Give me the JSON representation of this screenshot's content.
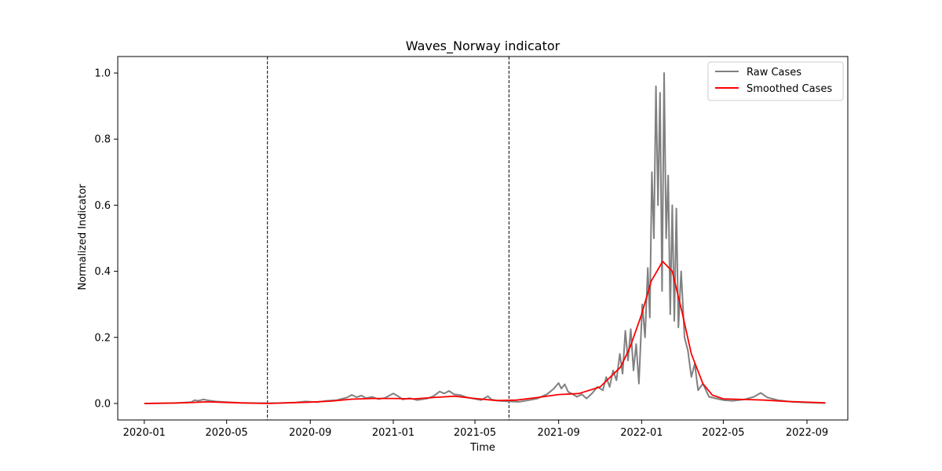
{
  "chart_data": {
    "type": "line",
    "title": "Waves_Norway indicator",
    "xlabel": "Time",
    "ylabel": "Normalized Indicator",
    "xlim": [
      "2019-11-23",
      "2022-10-31"
    ],
    "ylim": [
      -0.05,
      1.05
    ],
    "x_ticks": [
      "2020-01",
      "2020-05",
      "2020-09",
      "2021-01",
      "2021-05",
      "2021-09",
      "2022-01",
      "2022-05",
      "2022-09"
    ],
    "y_ticks": [
      "0.0",
      "0.2",
      "0.4",
      "0.6",
      "0.8",
      "1.0"
    ],
    "grid": false,
    "legend": {
      "placement": "top-right"
    },
    "vlines": [
      "2020-06-30",
      "2021-06-20"
    ],
    "series": [
      {
        "name": "Raw Cases",
        "color": "#808080",
        "points": [
          [
            "2020-01-01",
            0.0
          ],
          [
            "2020-02-15",
            0.001
          ],
          [
            "2020-03-10",
            0.004
          ],
          [
            "2020-03-15",
            0.01
          ],
          [
            "2020-03-20",
            0.008
          ],
          [
            "2020-03-28",
            0.012
          ],
          [
            "2020-04-05",
            0.009
          ],
          [
            "2020-04-15",
            0.006
          ],
          [
            "2020-05-01",
            0.004
          ],
          [
            "2020-05-20",
            0.002
          ],
          [
            "2020-06-15",
            0.001
          ],
          [
            "2020-07-15",
            0.001
          ],
          [
            "2020-08-10",
            0.003
          ],
          [
            "2020-08-25",
            0.006
          ],
          [
            "2020-09-10",
            0.004
          ],
          [
            "2020-09-25",
            0.008
          ],
          [
            "2020-10-10",
            0.01
          ],
          [
            "2020-10-25",
            0.018
          ],
          [
            "2020-11-01",
            0.026
          ],
          [
            "2020-11-08",
            0.019
          ],
          [
            "2020-11-15",
            0.024
          ],
          [
            "2020-11-22",
            0.016
          ],
          [
            "2020-12-01",
            0.02
          ],
          [
            "2020-12-10",
            0.013
          ],
          [
            "2020-12-20",
            0.017
          ],
          [
            "2021-01-01",
            0.03
          ],
          [
            "2021-01-08",
            0.022
          ],
          [
            "2021-01-15",
            0.012
          ],
          [
            "2021-01-25",
            0.016
          ],
          [
            "2021-02-05",
            0.01
          ],
          [
            "2021-02-20",
            0.015
          ],
          [
            "2021-03-01",
            0.022
          ],
          [
            "2021-03-10",
            0.036
          ],
          [
            "2021-03-17",
            0.03
          ],
          [
            "2021-03-24",
            0.038
          ],
          [
            "2021-03-31",
            0.028
          ],
          [
            "2021-04-10",
            0.025
          ],
          [
            "2021-04-20",
            0.018
          ],
          [
            "2021-05-01",
            0.014
          ],
          [
            "2021-05-10",
            0.01
          ],
          [
            "2021-05-20",
            0.022
          ],
          [
            "2021-05-25",
            0.012
          ],
          [
            "2021-06-05",
            0.008
          ],
          [
            "2021-06-20",
            0.006
          ],
          [
            "2021-07-05",
            0.005
          ],
          [
            "2021-07-20",
            0.01
          ],
          [
            "2021-08-01",
            0.015
          ],
          [
            "2021-08-15",
            0.028
          ],
          [
            "2021-08-25",
            0.045
          ],
          [
            "2021-09-01",
            0.062
          ],
          [
            "2021-09-05",
            0.045
          ],
          [
            "2021-09-10",
            0.058
          ],
          [
            "2021-09-15",
            0.035
          ],
          [
            "2021-09-20",
            0.03
          ],
          [
            "2021-09-28",
            0.02
          ],
          [
            "2021-10-05",
            0.028
          ],
          [
            "2021-10-12",
            0.015
          ],
          [
            "2021-10-20",
            0.03
          ],
          [
            "2021-10-28",
            0.05
          ],
          [
            "2021-11-05",
            0.04
          ],
          [
            "2021-11-10",
            0.08
          ],
          [
            "2021-11-15",
            0.05
          ],
          [
            "2021-11-20",
            0.1
          ],
          [
            "2021-11-25",
            0.07
          ],
          [
            "2021-11-30",
            0.15
          ],
          [
            "2021-12-04",
            0.09
          ],
          [
            "2021-12-08",
            0.22
          ],
          [
            "2021-12-12",
            0.13
          ],
          [
            "2021-12-16",
            0.225
          ],
          [
            "2021-12-20",
            0.1
          ],
          [
            "2021-12-24",
            0.18
          ],
          [
            "2021-12-28",
            0.06
          ],
          [
            "2022-01-02",
            0.3
          ],
          [
            "2022-01-06",
            0.2
          ],
          [
            "2022-01-10",
            0.41
          ],
          [
            "2022-01-13",
            0.26
          ],
          [
            "2022-01-16",
            0.7
          ],
          [
            "2022-01-19",
            0.5
          ],
          [
            "2022-01-22",
            0.96
          ],
          [
            "2022-01-25",
            0.6
          ],
          [
            "2022-01-28",
            0.94
          ],
          [
            "2022-01-31",
            0.34
          ],
          [
            "2022-02-03",
            1.0
          ],
          [
            "2022-02-06",
            0.5
          ],
          [
            "2022-02-09",
            0.69
          ],
          [
            "2022-02-12",
            0.27
          ],
          [
            "2022-02-15",
            0.6
          ],
          [
            "2022-02-18",
            0.25
          ],
          [
            "2022-02-21",
            0.59
          ],
          [
            "2022-02-24",
            0.23
          ],
          [
            "2022-02-28",
            0.4
          ],
          [
            "2022-03-05",
            0.2
          ],
          [
            "2022-03-10",
            0.16
          ],
          [
            "2022-03-15",
            0.08
          ],
          [
            "2022-03-20",
            0.12
          ],
          [
            "2022-03-25",
            0.04
          ],
          [
            "2022-04-01",
            0.06
          ],
          [
            "2022-04-10",
            0.02
          ],
          [
            "2022-04-20",
            0.015
          ],
          [
            "2022-05-01",
            0.01
          ],
          [
            "2022-05-15",
            0.008
          ],
          [
            "2022-06-01",
            0.012
          ],
          [
            "2022-06-15",
            0.02
          ],
          [
            "2022-06-25",
            0.032
          ],
          [
            "2022-07-05",
            0.018
          ],
          [
            "2022-07-20",
            0.01
          ],
          [
            "2022-08-10",
            0.005
          ],
          [
            "2022-09-01",
            0.003
          ],
          [
            "2022-09-28",
            0.001
          ]
        ]
      },
      {
        "name": "Smoothed Cases",
        "color": "#ff0000",
        "points": [
          [
            "2020-01-01",
            0.0
          ],
          [
            "2020-03-01",
            0.002
          ],
          [
            "2020-04-01",
            0.005
          ],
          [
            "2020-05-01",
            0.003
          ],
          [
            "2020-06-01",
            0.001
          ],
          [
            "2020-07-01",
            0.0
          ],
          [
            "2020-08-01",
            0.002
          ],
          [
            "2020-09-01",
            0.004
          ],
          [
            "2020-10-01",
            0.007
          ],
          [
            "2020-11-01",
            0.013
          ],
          [
            "2020-12-01",
            0.015
          ],
          [
            "2021-01-01",
            0.015
          ],
          [
            "2021-02-01",
            0.014
          ],
          [
            "2021-03-01",
            0.018
          ],
          [
            "2021-04-01",
            0.022
          ],
          [
            "2021-05-01",
            0.015
          ],
          [
            "2021-06-01",
            0.009
          ],
          [
            "2021-07-01",
            0.01
          ],
          [
            "2021-08-01",
            0.018
          ],
          [
            "2021-09-01",
            0.027
          ],
          [
            "2021-10-01",
            0.03
          ],
          [
            "2021-11-01",
            0.05
          ],
          [
            "2021-12-01",
            0.11
          ],
          [
            "2021-12-15",
            0.17
          ],
          [
            "2022-01-01",
            0.27
          ],
          [
            "2022-01-15",
            0.37
          ],
          [
            "2022-02-01",
            0.43
          ],
          [
            "2022-02-15",
            0.4
          ],
          [
            "2022-03-01",
            0.28
          ],
          [
            "2022-03-15",
            0.15
          ],
          [
            "2022-04-01",
            0.06
          ],
          [
            "2022-04-15",
            0.025
          ],
          [
            "2022-05-01",
            0.014
          ],
          [
            "2022-06-01",
            0.012
          ],
          [
            "2022-07-01",
            0.01
          ],
          [
            "2022-08-01",
            0.006
          ],
          [
            "2022-09-28",
            0.002
          ]
        ]
      }
    ]
  }
}
